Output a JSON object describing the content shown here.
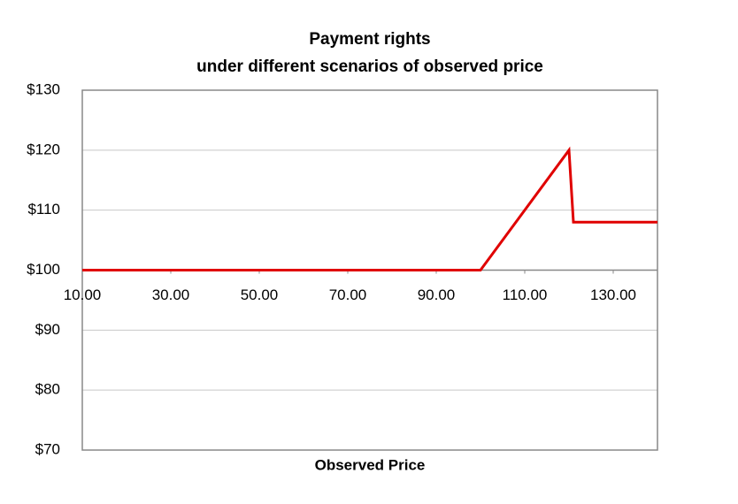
{
  "chart_data": {
    "type": "line",
    "title": "Payment rights",
    "subtitle": "under different scenarios of observed price",
    "x_label": "Observed Price",
    "x": [
      10,
      100,
      120,
      121,
      140
    ],
    "values": [
      100,
      100,
      120,
      108,
      108
    ],
    "color": "#e00000",
    "xlim": [
      10,
      140
    ],
    "xticks": [
      {
        "value": 10,
        "label": "10.00"
      },
      {
        "value": 30,
        "label": "30.00"
      },
      {
        "value": 50,
        "label": "50.00"
      },
      {
        "value": 70,
        "label": "70.00"
      },
      {
        "value": 90,
        "label": "90.00"
      },
      {
        "value": 110,
        "label": "110.00"
      },
      {
        "value": 130,
        "label": "130.00"
      }
    ],
    "x_axis_crosses_at": 100,
    "ylim": [
      70,
      130
    ],
    "yticks": [
      {
        "value": 70,
        "label": "$70"
      },
      {
        "value": 80,
        "label": "$80"
      },
      {
        "value": 90,
        "label": "$90"
      },
      {
        "value": 100,
        "label": "$100"
      },
      {
        "value": 110,
        "label": "$110"
      },
      {
        "value": 120,
        "label": "$120"
      },
      {
        "value": 130,
        "label": "$130"
      }
    ],
    "grid": true
  }
}
